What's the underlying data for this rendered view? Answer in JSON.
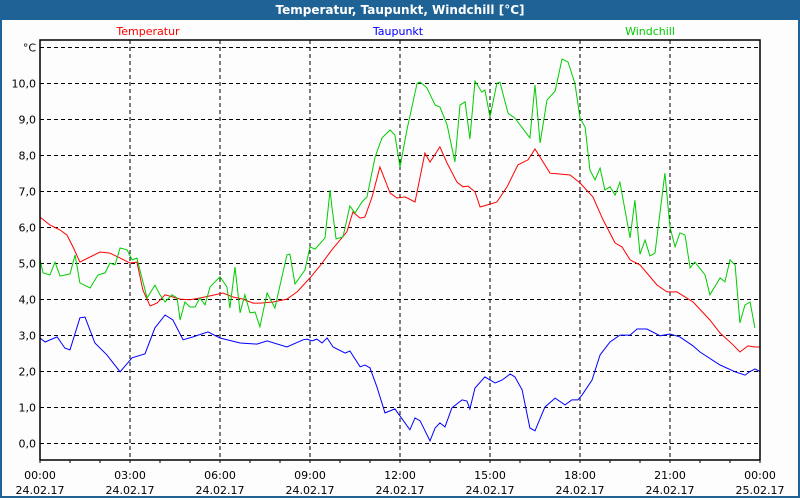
{
  "window": {
    "title": "Temperatur, Taupunkt, Windchill [°C]"
  },
  "chart_data": {
    "type": "line",
    "title": "Temperatur, Taupunkt, Windchill [°C]",
    "ylabel": "°C",
    "xlabel": "",
    "xlim": [
      0,
      24
    ],
    "ylim": [
      -0.46,
      11.21
    ],
    "grid": true,
    "y_ticks": [
      {
        "v": 0,
        "label": "0,0"
      },
      {
        "v": 1,
        "label": "1,0"
      },
      {
        "v": 2,
        "label": "2,0"
      },
      {
        "v": 3,
        "label": "3,0"
      },
      {
        "v": 4,
        "label": "4,0"
      },
      {
        "v": 5,
        "label": "5,0"
      },
      {
        "v": 6,
        "label": "6,0"
      },
      {
        "v": 7,
        "label": "7,0"
      },
      {
        "v": 8,
        "label": "8,0"
      },
      {
        "v": 9,
        "label": "9,0"
      },
      {
        "v": 10,
        "label": "10,0"
      },
      {
        "v": 11,
        "label": "°C"
      }
    ],
    "x_ticks": [
      {
        "h": 0,
        "time": "00:00",
        "date": "24.02.17"
      },
      {
        "h": 3,
        "time": "03:00",
        "date": "24.02.17"
      },
      {
        "h": 6,
        "time": "06:00",
        "date": "24.02.17"
      },
      {
        "h": 9,
        "time": "09:00",
        "date": "24.02.17"
      },
      {
        "h": 12,
        "time": "12:00",
        "date": "24.02.17"
      },
      {
        "h": 15,
        "time": "15:00",
        "date": "24.02.17"
      },
      {
        "h": 18,
        "time": "18:00",
        "date": "24.02.17"
      },
      {
        "h": 21,
        "time": "21:00",
        "date": "24.02.17"
      },
      {
        "h": 24,
        "time": "00:00",
        "date": "25.02.17"
      }
    ],
    "legend_placement": "top",
    "series": [
      {
        "name": "Temperatur",
        "color": "#ff0000",
        "points": [
          [
            0,
            6.29
          ],
          [
            0.33,
            6.07
          ],
          [
            0.67,
            5.93
          ],
          [
            0.9,
            5.79
          ],
          [
            1.1,
            5.46
          ],
          [
            1.33,
            5.04
          ],
          [
            1.67,
            5.18
          ],
          [
            2,
            5.32
          ],
          [
            2.33,
            5.29
          ],
          [
            2.67,
            5.15
          ],
          [
            3,
            5.01
          ],
          [
            3.23,
            5.04
          ],
          [
            3.43,
            4.26
          ],
          [
            3.67,
            3.82
          ],
          [
            3.9,
            3.9
          ],
          [
            4.17,
            4.13
          ],
          [
            4.43,
            4.07
          ],
          [
            4.67,
            4.01
          ],
          [
            5,
            3.99
          ],
          [
            5.33,
            4.04
          ],
          [
            5.67,
            4.1
          ],
          [
            6.1,
            4.18
          ],
          [
            6.43,
            4.07
          ],
          [
            6.77,
            4.01
          ],
          [
            7.1,
            3.9
          ],
          [
            7.33,
            3.9
          ],
          [
            7.77,
            3.93
          ],
          [
            8.23,
            4.01
          ],
          [
            8.57,
            4.21
          ],
          [
            9,
            4.6
          ],
          [
            9.33,
            4.93
          ],
          [
            9.73,
            5.38
          ],
          [
            10.23,
            5.88
          ],
          [
            10.43,
            6.43
          ],
          [
            10.67,
            6.26
          ],
          [
            10.83,
            6.29
          ],
          [
            11.07,
            6.85
          ],
          [
            11.33,
            7.68
          ],
          [
            11.67,
            6.96
          ],
          [
            11.9,
            6.82
          ],
          [
            12.17,
            6.85
          ],
          [
            12.5,
            6.71
          ],
          [
            12.67,
            7.4
          ],
          [
            12.83,
            8.07
          ],
          [
            13,
            7.82
          ],
          [
            13.33,
            8.24
          ],
          [
            13.57,
            7.79
          ],
          [
            13.9,
            7.26
          ],
          [
            14.1,
            7.13
          ],
          [
            14.27,
            7.15
          ],
          [
            14.5,
            6.99
          ],
          [
            14.67,
            6.57
          ],
          [
            15,
            6.65
          ],
          [
            15.23,
            6.71
          ],
          [
            15.57,
            7.13
          ],
          [
            15.93,
            7.74
          ],
          [
            16.27,
            7.88
          ],
          [
            16.5,
            8.18
          ],
          [
            17,
            7.51
          ],
          [
            17.27,
            7.49
          ],
          [
            17.67,
            7.46
          ],
          [
            18,
            7.24
          ],
          [
            18.43,
            6.85
          ],
          [
            18.77,
            6.21
          ],
          [
            19.17,
            5.57
          ],
          [
            19.4,
            5.46
          ],
          [
            19.67,
            5.1
          ],
          [
            20,
            4.96
          ],
          [
            20.57,
            4.4
          ],
          [
            20.9,
            4.21
          ],
          [
            21.23,
            4.21
          ],
          [
            21.77,
            3.93
          ],
          [
            22.33,
            3.43
          ],
          [
            22.67,
            3.07
          ],
          [
            23.1,
            2.74
          ],
          [
            23.33,
            2.54
          ],
          [
            23.6,
            2.71
          ],
          [
            23.83,
            2.68
          ],
          [
            24,
            2.68
          ]
        ]
      },
      {
        "name": "Taupunkt",
        "color": "#0000ff",
        "points": [
          [
            0,
            2.93
          ],
          [
            0.17,
            2.82
          ],
          [
            0.57,
            2.96
          ],
          [
            0.83,
            2.65
          ],
          [
            1,
            2.6
          ],
          [
            1.33,
            3.49
          ],
          [
            1.5,
            3.51
          ],
          [
            1.83,
            2.79
          ],
          [
            2.23,
            2.46
          ],
          [
            2.67,
            1.99
          ],
          [
            3.07,
            2.38
          ],
          [
            3.5,
            2.49
          ],
          [
            3.83,
            3.21
          ],
          [
            4.17,
            3.57
          ],
          [
            4.43,
            3.43
          ],
          [
            4.77,
            2.88
          ],
          [
            5.1,
            2.96
          ],
          [
            5.6,
            3.1
          ],
          [
            6,
            2.93
          ],
          [
            6.67,
            2.79
          ],
          [
            7.23,
            2.76
          ],
          [
            7.57,
            2.85
          ],
          [
            8.23,
            2.68
          ],
          [
            8.77,
            2.88
          ],
          [
            8.9,
            2.9
          ],
          [
            9.07,
            2.85
          ],
          [
            9.23,
            2.9
          ],
          [
            9.4,
            2.79
          ],
          [
            9.57,
            2.93
          ],
          [
            9.77,
            2.68
          ],
          [
            10.17,
            2.51
          ],
          [
            10.33,
            2.57
          ],
          [
            10.67,
            2.13
          ],
          [
            10.83,
            2.18
          ],
          [
            11,
            2.1
          ],
          [
            11.23,
            1.57
          ],
          [
            11.5,
            0.85
          ],
          [
            11.83,
            0.96
          ],
          [
            12.33,
            0.38
          ],
          [
            12.5,
            0.71
          ],
          [
            12.67,
            0.63
          ],
          [
            13,
            0.07
          ],
          [
            13.17,
            0.43
          ],
          [
            13.33,
            0.57
          ],
          [
            13.5,
            0.46
          ],
          [
            13.73,
            0.99
          ],
          [
            14.07,
            1.21
          ],
          [
            14.23,
            1.18
          ],
          [
            14.33,
            0.96
          ],
          [
            14.5,
            1.54
          ],
          [
            14.83,
            1.85
          ],
          [
            15.17,
            1.68
          ],
          [
            15.4,
            1.76
          ],
          [
            15.67,
            1.93
          ],
          [
            15.83,
            1.85
          ],
          [
            16.07,
            1.49
          ],
          [
            16.33,
            0.43
          ],
          [
            16.5,
            0.35
          ],
          [
            16.83,
            1.01
          ],
          [
            17.17,
            1.26
          ],
          [
            17.5,
            1.07
          ],
          [
            17.73,
            1.21
          ],
          [
            17.93,
            1.21
          ],
          [
            18.07,
            1.35
          ],
          [
            18.4,
            1.76
          ],
          [
            18.67,
            2.46
          ],
          [
            19,
            2.82
          ],
          [
            19.33,
            3.01
          ],
          [
            19.67,
            3.01
          ],
          [
            19.9,
            3.18
          ],
          [
            20.23,
            3.18
          ],
          [
            20.67,
            2.99
          ],
          [
            21,
            3.04
          ],
          [
            21.33,
            2.96
          ],
          [
            21.77,
            2.71
          ],
          [
            22,
            2.54
          ],
          [
            22.67,
            2.18
          ],
          [
            23.17,
            1.99
          ],
          [
            23.5,
            1.9
          ],
          [
            23.67,
            2.0
          ],
          [
            23.83,
            2.07
          ],
          [
            24,
            2.0
          ]
        ]
      },
      {
        "name": "Windchill",
        "color": "#00cc00",
        "points": [
          [
            0,
            5.12
          ],
          [
            0.1,
            4.74
          ],
          [
            0.33,
            4.68
          ],
          [
            0.5,
            5.04
          ],
          [
            0.67,
            4.65
          ],
          [
            1,
            4.71
          ],
          [
            1.17,
            5.24
          ],
          [
            1.33,
            4.46
          ],
          [
            1.67,
            4.32
          ],
          [
            1.93,
            4.68
          ],
          [
            2.17,
            4.74
          ],
          [
            2.33,
            5.01
          ],
          [
            2.5,
            4.96
          ],
          [
            2.67,
            5.43
          ],
          [
            2.9,
            5.38
          ],
          [
            3.07,
            5.1
          ],
          [
            3.23,
            5.15
          ],
          [
            3.33,
            4.82
          ],
          [
            3.57,
            4.04
          ],
          [
            3.83,
            4.4
          ],
          [
            4,
            4.13
          ],
          [
            4.17,
            3.93
          ],
          [
            4.4,
            4.13
          ],
          [
            4.57,
            4.04
          ],
          [
            4.67,
            3.43
          ],
          [
            4.83,
            3.93
          ],
          [
            5,
            3.79
          ],
          [
            5.17,
            3.79
          ],
          [
            5.33,
            4.04
          ],
          [
            5.5,
            3.85
          ],
          [
            5.67,
            4.35
          ],
          [
            6,
            4.63
          ],
          [
            6.23,
            4.35
          ],
          [
            6.33,
            3.76
          ],
          [
            6.5,
            4.9
          ],
          [
            6.67,
            3.63
          ],
          [
            6.83,
            4.13
          ],
          [
            7,
            3.63
          ],
          [
            7.17,
            3.65
          ],
          [
            7.33,
            3.24
          ],
          [
            7.57,
            4.18
          ],
          [
            7.83,
            3.76
          ],
          [
            8.23,
            5.24
          ],
          [
            8.33,
            5.26
          ],
          [
            8.5,
            4.43
          ],
          [
            8.83,
            4.82
          ],
          [
            9,
            5.46
          ],
          [
            9.17,
            5.4
          ],
          [
            9.5,
            5.71
          ],
          [
            9.67,
            7.04
          ],
          [
            9.73,
            6.57
          ],
          [
            9.87,
            5.68
          ],
          [
            10.1,
            5.74
          ],
          [
            10.33,
            6.6
          ],
          [
            10.5,
            6.4
          ],
          [
            10.73,
            6.71
          ],
          [
            10.9,
            6.85
          ],
          [
            11.17,
            7.96
          ],
          [
            11.4,
            8.49
          ],
          [
            11.67,
            8.71
          ],
          [
            11.83,
            8.57
          ],
          [
            12,
            7.68
          ],
          [
            12.23,
            8.71
          ],
          [
            12.57,
            10.01
          ],
          [
            12.67,
            10.04
          ],
          [
            12.9,
            9.88
          ],
          [
            13.17,
            9.4
          ],
          [
            13.33,
            9.35
          ],
          [
            13.57,
            8.85
          ],
          [
            13.83,
            7.82
          ],
          [
            14,
            9.4
          ],
          [
            14.17,
            9.49
          ],
          [
            14.33,
            8.46
          ],
          [
            14.5,
            10.07
          ],
          [
            14.73,
            9.76
          ],
          [
            14.83,
            9.82
          ],
          [
            15,
            9.07
          ],
          [
            15.23,
            10.01
          ],
          [
            15.33,
            10.04
          ],
          [
            15.6,
            9.18
          ],
          [
            15.83,
            9.04
          ],
          [
            16.33,
            8.49
          ],
          [
            16.5,
            9.96
          ],
          [
            16.67,
            8.35
          ],
          [
            16.9,
            9.54
          ],
          [
            17.17,
            9.79
          ],
          [
            17.4,
            10.68
          ],
          [
            17.6,
            10.6
          ],
          [
            17.83,
            10.01
          ],
          [
            18,
            9.04
          ],
          [
            18.17,
            8.79
          ],
          [
            18.33,
            7.6
          ],
          [
            18.5,
            7.32
          ],
          [
            18.67,
            7.65
          ],
          [
            18.83,
            7.04
          ],
          [
            19,
            7.13
          ],
          [
            19.17,
            6.9
          ],
          [
            19.33,
            7.26
          ],
          [
            19.67,
            5.71
          ],
          [
            19.83,
            6.76
          ],
          [
            20,
            5.26
          ],
          [
            20.17,
            5.65
          ],
          [
            20.33,
            5.21
          ],
          [
            20.5,
            5.29
          ],
          [
            20.83,
            7.51
          ],
          [
            21,
            6.01
          ],
          [
            21.17,
            5.46
          ],
          [
            21.33,
            5.85
          ],
          [
            21.5,
            5.79
          ],
          [
            21.67,
            4.88
          ],
          [
            21.83,
            5.04
          ],
          [
            22.17,
            4.68
          ],
          [
            22.33,
            4.13
          ],
          [
            22.67,
            4.6
          ],
          [
            22.83,
            4.49
          ],
          [
            23,
            5.1
          ],
          [
            23.17,
            4.96
          ],
          [
            23.33,
            3.35
          ],
          [
            23.5,
            3.85
          ],
          [
            23.67,
            3.93
          ],
          [
            23.83,
            3.21
          ]
        ]
      }
    ]
  }
}
